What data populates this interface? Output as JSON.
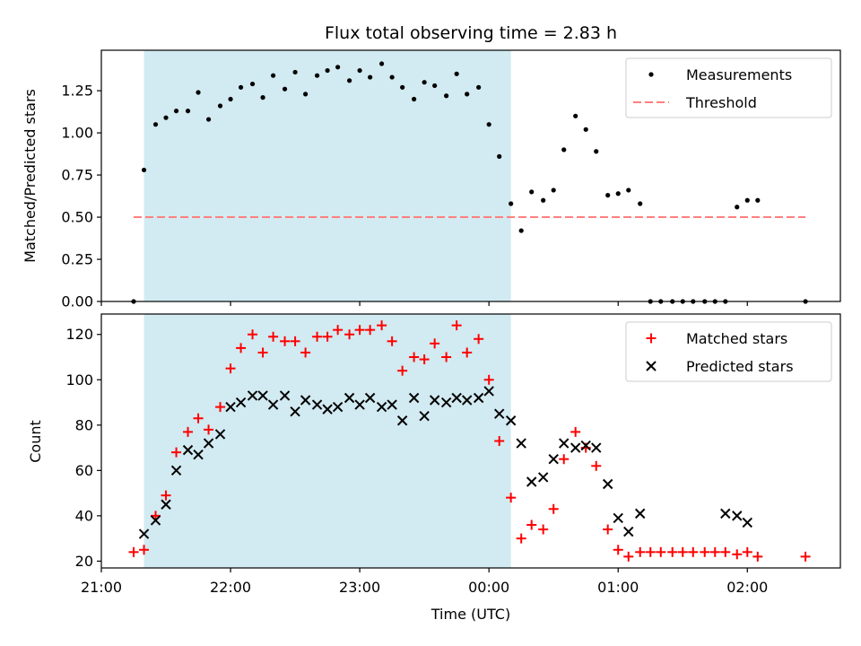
{
  "figure": {
    "title": "Flux total observing time = 2.83 h"
  },
  "colors": {
    "shade": "#add8e6",
    "threshold": "#ff7f7f",
    "matched": "#ff0000",
    "predicted": "#000000",
    "measure": "#000000"
  },
  "chart_data": [
    {
      "type": "scatter",
      "title": "",
      "xlabel": "",
      "ylabel": "Matched/Predicted stars",
      "xlim_hours": [
        21.0,
        26.72
      ],
      "ylim": [
        0,
        1.49
      ],
      "yticks": [
        0,
        0.25,
        0.5,
        0.75,
        1.0,
        1.25
      ],
      "ytick_labels": [
        "0.00",
        "0.25",
        "0.50",
        "0.75",
        "1.00",
        "1.25"
      ],
      "xticks": [
        21,
        22,
        23,
        24,
        25,
        26
      ],
      "legend": {
        "position": "top-right",
        "entries": [
          "Measurements",
          "Threshold"
        ]
      },
      "shaded_span_hours": [
        21.33,
        24.17
      ],
      "threshold": {
        "name": "Threshold",
        "y": 0.5,
        "x_range_hours": [
          21.25,
          26.45
        ]
      },
      "series": [
        {
          "name": "Measurements",
          "x_hours": [
            21.25,
            21.33,
            21.42,
            21.5,
            21.58,
            21.67,
            21.75,
            21.83,
            21.92,
            22.0,
            22.08,
            22.17,
            22.25,
            22.33,
            22.42,
            22.5,
            22.58,
            22.67,
            22.75,
            22.83,
            22.92,
            23.0,
            23.08,
            23.17,
            23.25,
            23.33,
            23.42,
            23.5,
            23.58,
            23.67,
            23.75,
            23.83,
            23.92,
            24.0,
            24.08,
            24.17,
            24.25,
            24.33,
            24.42,
            24.5,
            24.58,
            24.67,
            24.75,
            24.83,
            24.92,
            25.0,
            25.08,
            25.17,
            25.25,
            25.33,
            25.42,
            25.5,
            25.58,
            25.67,
            25.75,
            25.83,
            25.92,
            26.0,
            26.08,
            26.45
          ],
          "y": [
            0.0,
            0.78,
            1.05,
            1.09,
            1.13,
            1.13,
            1.24,
            1.08,
            1.16,
            1.2,
            1.27,
            1.29,
            1.21,
            1.34,
            1.26,
            1.36,
            1.23,
            1.34,
            1.37,
            1.39,
            1.31,
            1.37,
            1.33,
            1.41,
            1.33,
            1.27,
            1.2,
            1.3,
            1.28,
            1.22,
            1.35,
            1.23,
            1.27,
            1.05,
            0.86,
            0.58,
            0.42,
            0.65,
            0.6,
            0.66,
            0.9,
            1.1,
            1.02,
            0.89,
            0.63,
            0.64,
            0.66,
            0.58,
            0.0,
            0.0,
            0.0,
            0.0,
            0.0,
            0.0,
            0.0,
            0.0,
            0.56,
            0.6,
            0.6,
            0.0
          ]
        }
      ]
    },
    {
      "type": "scatter",
      "title": "",
      "xlabel": "Time (UTC)",
      "ylabel": "Count",
      "xlim_hours": [
        21.0,
        26.72
      ],
      "ylim": [
        17,
        129
      ],
      "yticks": [
        20,
        40,
        60,
        80,
        100,
        120
      ],
      "ytick_labels": [
        "20",
        "40",
        "60",
        "80",
        "100",
        "120"
      ],
      "xticks": [
        21,
        22,
        23,
        24,
        25,
        26
      ],
      "xtick_labels": [
        "21:00",
        "22:00",
        "23:00",
        "00:00",
        "01:00",
        "02:00"
      ],
      "legend": {
        "position": "top-right",
        "entries": [
          "Matched stars",
          "Predicted stars"
        ]
      },
      "shaded_span_hours": [
        21.33,
        24.17
      ],
      "series": [
        {
          "name": "Matched stars",
          "x_hours": [
            21.25,
            21.33,
            21.42,
            21.5,
            21.58,
            21.67,
            21.75,
            21.83,
            21.92,
            22.0,
            22.08,
            22.17,
            22.25,
            22.33,
            22.42,
            22.5,
            22.58,
            22.67,
            22.75,
            22.83,
            22.92,
            23.0,
            23.08,
            23.17,
            23.25,
            23.33,
            23.42,
            23.5,
            23.58,
            23.67,
            23.75,
            23.83,
            23.92,
            24.0,
            24.08,
            24.17,
            24.25,
            24.33,
            24.42,
            24.5,
            24.58,
            24.67,
            24.75,
            24.83,
            24.92,
            25.0,
            25.08,
            25.17,
            25.25,
            25.33,
            25.42,
            25.5,
            25.58,
            25.67,
            25.75,
            25.83,
            25.92,
            26.0,
            26.08,
            26.45
          ],
          "y": [
            24,
            25,
            40,
            49,
            68,
            77,
            83,
            78,
            88,
            105,
            114,
            120,
            112,
            119,
            117,
            117,
            112,
            119,
            119,
            122,
            120,
            122,
            122,
            124,
            117,
            104,
            110,
            109,
            116,
            110,
            124,
            112,
            118,
            100,
            73,
            48,
            30,
            36,
            34,
            43,
            65,
            77,
            70,
            62,
            34,
            25,
            22,
            24,
            24,
            24,
            24,
            24,
            24,
            24,
            24,
            24,
            23,
            24,
            22,
            22
          ]
        },
        {
          "name": "Predicted stars",
          "x_hours": [
            21.33,
            21.42,
            21.5,
            21.58,
            21.67,
            21.75,
            21.83,
            21.92,
            22.0,
            22.08,
            22.17,
            22.25,
            22.33,
            22.42,
            22.5,
            22.58,
            22.67,
            22.75,
            22.83,
            22.92,
            23.0,
            23.08,
            23.17,
            23.25,
            23.33,
            23.42,
            23.5,
            23.58,
            23.67,
            23.75,
            23.83,
            23.92,
            24.0,
            24.08,
            24.17,
            24.25,
            24.33,
            24.42,
            24.5,
            24.58,
            24.67,
            24.75,
            24.83,
            24.92,
            25.0,
            25.08,
            25.17,
            25.83,
            25.92,
            26.0
          ],
          "y": [
            32,
            38,
            45,
            60,
            69,
            67,
            72,
            76,
            88,
            90,
            93,
            93,
            89,
            93,
            86,
            91,
            89,
            87,
            88,
            92,
            89,
            92,
            88,
            89,
            82,
            92,
            84,
            91,
            90,
            92,
            91,
            92,
            95,
            85,
            82,
            72,
            55,
            57,
            65,
            72,
            70,
            71,
            70,
            54,
            39,
            33,
            41,
            41,
            40,
            37
          ]
        }
      ]
    }
  ]
}
